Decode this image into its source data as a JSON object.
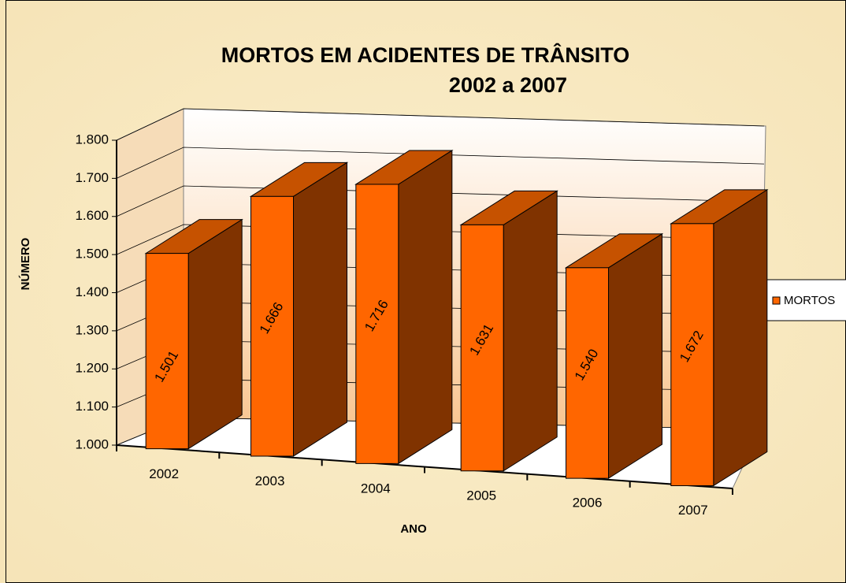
{
  "chart_data": {
    "type": "bar3d",
    "title": [
      "MORTOS EM ACIDENTES DE TRÂNSITO",
      "2002 a 2007"
    ],
    "y_label": "NÚMERO",
    "x_label": "ANO",
    "categories": [
      "2002",
      "2003",
      "2004",
      "2005",
      "2006",
      "2007"
    ],
    "series": [
      {
        "name": "MORTOS",
        "color": "#ff6600",
        "side_color": "#803300",
        "values": [
          1501,
          1666,
          1716,
          1631,
          1540,
          1672
        ],
        "value_labels": [
          "1.501",
          "1.666",
          "1.716",
          "1.631",
          "1.540",
          "1.672"
        ]
      }
    ],
    "ylim": [
      1000,
      1800
    ],
    "yticks": [
      {
        "value": 1000,
        "label": "1.000"
      },
      {
        "value": 1100,
        "label": "1.100"
      },
      {
        "value": 1200,
        "label": "1.200"
      },
      {
        "value": 1300,
        "label": "1.300"
      },
      {
        "value": 1400,
        "label": "1.400"
      },
      {
        "value": 1500,
        "label": "1.500"
      },
      {
        "value": 1600,
        "label": "1.600"
      },
      {
        "value": 1700,
        "label": "1.700"
      },
      {
        "value": 1800,
        "label": "1.800"
      }
    ],
    "grid": true,
    "legend": "right"
  }
}
